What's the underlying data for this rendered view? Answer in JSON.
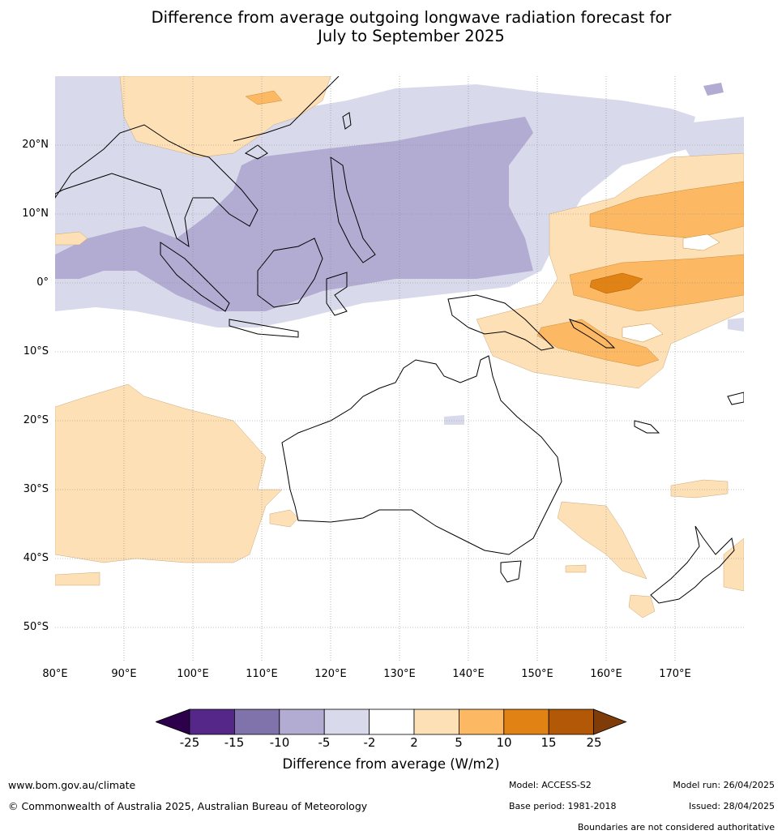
{
  "title_line1": "Difference from average outgoing longwave radiation forecast for",
  "title_line2": "July to September 2025",
  "lat_labels": [
    "20°N",
    "10°N",
    "0°",
    "10°S",
    "20°S",
    "30°S",
    "40°S",
    "50°S"
  ],
  "lon_labels": [
    "80°E",
    "90°E",
    "100°E",
    "110°E",
    "120°E",
    "130°E",
    "140°E",
    "150°E",
    "160°E",
    "170°E"
  ],
  "colorbar": {
    "ticks": [
      "-25",
      "-15",
      "-10",
      "-5",
      "-2",
      "2",
      "5",
      "10",
      "15",
      "25"
    ],
    "colors": [
      "#2d004b",
      "#542788",
      "#8073ac",
      "#b2abd2",
      "#d8daeb",
      "#ffffff",
      "#fee0b6",
      "#fdb863",
      "#e08214",
      "#b35806",
      "#7f3b08"
    ],
    "label": "Difference from average (W/m2)"
  },
  "footer": {
    "url": "www.bom.gov.au/climate",
    "copyright": "© Commonwealth of Australia 2025, Australian Bureau of Meteorology",
    "model": "Model: ACCESS-S2",
    "base_period": "Base period: 1981-2018",
    "model_run": "Model run: 26/04/2025",
    "issued": "Issued: 28/04/2025",
    "disclaimer": "Boundaries are not considered authoritative"
  }
}
